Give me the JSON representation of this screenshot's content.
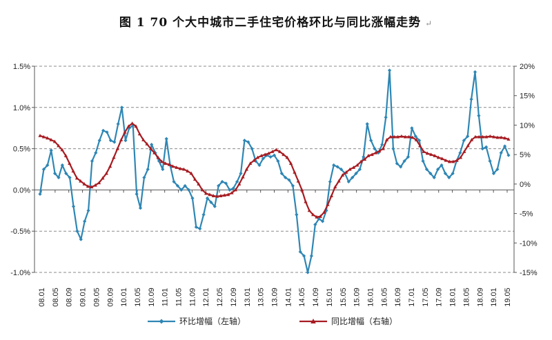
{
  "title": {
    "text": "图 1    70 个大中城市二手住宅价格环比与同比涨幅走势",
    "mark": "↵"
  },
  "chart_data": {
    "type": "line",
    "left_axis": {
      "min": -1.0,
      "max": 1.5,
      "ticks": [
        "-1.0%",
        "-0.5%",
        "0.0%",
        "0.5%",
        "1.0%",
        "1.5%"
      ]
    },
    "right_axis": {
      "min": -15,
      "max": 20,
      "ticks": [
        "-15%",
        "-10%",
        "-5%",
        "0%",
        "5%",
        "10%",
        "15%",
        "20%"
      ]
    },
    "x_ticks": [
      "08.01",
      "08.05",
      "08.09",
      "09.01",
      "09.05",
      "09.09",
      "10.01",
      "10.05",
      "10.09",
      "11.01",
      "11.05",
      "11.09",
      "12.01",
      "12.05",
      "12.09",
      "13.01",
      "13.05",
      "13.09",
      "14.01",
      "14.05",
      "14.09",
      "15.01",
      "15.05",
      "15.09",
      "16.01",
      "16.05",
      "16.09",
      "17.01",
      "17.05",
      "17.09",
      "18.01",
      "18.05",
      "18.09",
      "19.01",
      "19.05"
    ],
    "grid": true,
    "legend_position": "bottom",
    "series": [
      {
        "name": "环比增幅（左轴）",
        "axis": "left",
        "color": "#2e86b4",
        "marker": "diamond",
        "values": [
          -0.05,
          0.25,
          0.3,
          0.48,
          0.2,
          0.15,
          0.3,
          0.2,
          0.15,
          -0.2,
          -0.5,
          -0.6,
          -0.38,
          -0.25,
          0.35,
          0.45,
          0.6,
          0.72,
          0.7,
          0.6,
          0.58,
          0.8,
          1.0,
          0.6,
          0.75,
          0.78,
          -0.05,
          -0.22,
          0.15,
          0.25,
          0.55,
          0.45,
          0.35,
          0.25,
          0.62,
          0.3,
          0.1,
          0.05,
          0.0,
          0.05,
          0.0,
          -0.1,
          -0.45,
          -0.47,
          -0.3,
          -0.1,
          -0.15,
          -0.2,
          0.05,
          0.1,
          0.08,
          0.0,
          0.02,
          0.1,
          0.2,
          0.6,
          0.58,
          0.5,
          0.35,
          0.3,
          0.38,
          0.42,
          0.4,
          0.42,
          0.35,
          0.2,
          0.15,
          0.12,
          0.05,
          -0.3,
          -0.75,
          -0.8,
          -1.0,
          -0.8,
          -0.42,
          -0.35,
          -0.38,
          -0.25,
          0.1,
          0.3,
          0.28,
          0.25,
          0.2,
          0.1,
          0.15,
          0.2,
          0.25,
          0.4,
          0.8,
          0.6,
          0.5,
          0.45,
          0.55,
          0.88,
          1.45,
          0.5,
          0.32,
          0.28,
          0.35,
          0.4,
          0.75,
          0.65,
          0.6,
          0.35,
          0.25,
          0.2,
          0.15,
          0.25,
          0.3,
          0.2,
          0.15,
          0.2,
          0.35,
          0.45,
          0.6,
          0.65,
          1.1,
          1.43,
          0.9,
          0.5,
          0.52,
          0.35,
          0.2,
          0.25,
          0.45,
          0.53,
          0.42
        ]
      },
      {
        "name": "同比增幅（右轴）",
        "axis": "right",
        "color": "#a61c22",
        "marker": "triangle",
        "values": [
          8.2,
          8.0,
          7.8,
          7.5,
          7.2,
          6.5,
          5.8,
          4.8,
          3.5,
          2.2,
          1.0,
          0.5,
          0.0,
          -0.4,
          -0.5,
          -0.2,
          0.2,
          1.0,
          1.8,
          3.0,
          4.5,
          6.0,
          7.5,
          8.8,
          9.8,
          10.3,
          9.8,
          8.5,
          7.5,
          6.8,
          6.0,
          5.3,
          4.5,
          3.8,
          3.5,
          3.3,
          3.0,
          2.8,
          2.6,
          2.5,
          2.2,
          1.8,
          0.8,
          0.0,
          -1.0,
          -1.6,
          -1.8,
          -2.0,
          -2.1,
          -2.0,
          -1.9,
          -1.8,
          -1.5,
          -1.0,
          0.0,
          1.2,
          2.5,
          3.5,
          4.0,
          4.5,
          4.8,
          5.0,
          5.2,
          5.5,
          5.8,
          5.5,
          5.0,
          4.5,
          3.5,
          2.0,
          0.5,
          -1.0,
          -3.0,
          -4.5,
          -5.2,
          -5.6,
          -5.5,
          -4.8,
          -3.5,
          -2.0,
          -0.5,
          0.5,
          1.5,
          2.0,
          2.5,
          2.8,
          3.2,
          3.8,
          4.2,
          4.8,
          5.0,
          5.3,
          5.6,
          6.0,
          7.5,
          8.0,
          8.0,
          8.0,
          8.1,
          8.0,
          8.0,
          7.9,
          7.5,
          6.5,
          5.5,
          5.2,
          5.0,
          4.8,
          4.5,
          4.3,
          4.0,
          3.8,
          3.8,
          4.0,
          4.5,
          5.5,
          6.5,
          7.5,
          8.0,
          8.0,
          8.0,
          8.0,
          8.1,
          8.0,
          7.9,
          7.9,
          7.8,
          7.6
        ]
      }
    ]
  }
}
